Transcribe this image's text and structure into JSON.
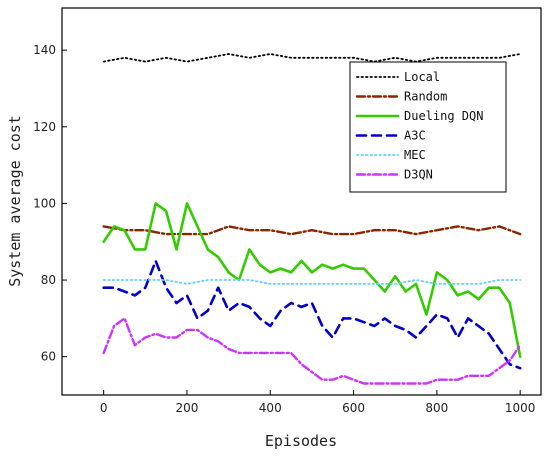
{
  "chart_data": {
    "type": "line",
    "xlabel": "Episodes",
    "ylabel": "System average cost",
    "xlim": [
      -100,
      1050
    ],
    "ylim": [
      50,
      151
    ],
    "xticks": [
      0,
      200,
      400,
      600,
      800,
      1000
    ],
    "yticks": [
      60,
      80,
      100,
      120,
      140
    ],
    "x_tick_labels": [
      "0",
      "200",
      "400",
      "600",
      "800",
      "1000"
    ],
    "y_tick_labels": [
      "60",
      "80",
      "100",
      "120",
      "140"
    ],
    "grid": false,
    "legend_position": "top-right",
    "series": [
      {
        "name": "Local",
        "color": "#000000",
        "style": "dotted",
        "x": [
          0,
          50,
          100,
          150,
          200,
          250,
          300,
          350,
          400,
          450,
          500,
          550,
          600,
          650,
          700,
          750,
          800,
          850,
          900,
          950,
          1000
        ],
        "y": [
          137,
          138,
          137,
          138,
          137,
          138,
          139,
          138,
          139,
          138,
          138,
          138,
          138,
          137,
          138,
          137,
          138,
          138,
          138,
          138,
          139
        ]
      },
      {
        "name": "Random",
        "color": "#8b2500",
        "style": "dashdot",
        "x": [
          0,
          50,
          100,
          150,
          200,
          250,
          300,
          350,
          400,
          450,
          500,
          550,
          600,
          650,
          700,
          750,
          800,
          850,
          900,
          950,
          1000
        ],
        "y": [
          94,
          93,
          93,
          92,
          92,
          92,
          94,
          93,
          93,
          92,
          93,
          92,
          92,
          93,
          93,
          92,
          93,
          94,
          93,
          94,
          92
        ]
      },
      {
        "name": "Dueling DQN",
        "color": "#33cc00",
        "style": "solid",
        "x": [
          0,
          25,
          50,
          75,
          100,
          125,
          150,
          175,
          200,
          225,
          250,
          275,
          300,
          325,
          350,
          375,
          400,
          425,
          450,
          475,
          500,
          525,
          550,
          575,
          600,
          625,
          650,
          675,
          700,
          725,
          750,
          775,
          800,
          825,
          850,
          875,
          900,
          925,
          950,
          975,
          1000
        ],
        "y": [
          90,
          94,
          93,
          88,
          88,
          100,
          98,
          88,
          100,
          94,
          88,
          86,
          82,
          80,
          88,
          84,
          82,
          83,
          82,
          85,
          82,
          84,
          83,
          84,
          83,
          83,
          80,
          77,
          81,
          77,
          79,
          71,
          82,
          80,
          76,
          77,
          75,
          78,
          78,
          74,
          60
        ]
      },
      {
        "name": "A3C",
        "color": "#0000cc",
        "style": "dashed",
        "x": [
          0,
          25,
          50,
          75,
          100,
          125,
          150,
          175,
          200,
          225,
          250,
          275,
          300,
          325,
          350,
          375,
          400,
          425,
          450,
          475,
          500,
          525,
          550,
          575,
          600,
          625,
          650,
          675,
          700,
          725,
          750,
          775,
          800,
          825,
          850,
          875,
          900,
          925,
          950,
          975,
          1000
        ],
        "y": [
          78,
          78,
          77,
          76,
          78,
          85,
          78,
          74,
          76,
          70,
          72,
          78,
          72,
          74,
          73,
          70,
          68,
          72,
          74,
          73,
          74,
          68,
          65,
          70,
          70,
          69,
          68,
          70,
          68,
          67,
          65,
          68,
          71,
          70,
          65,
          70,
          68,
          66,
          62,
          58,
          57
        ]
      },
      {
        "name": "MEC",
        "color": "#66ccff",
        "style": "dotted",
        "x": [
          0,
          50,
          100,
          150,
          200,
          250,
          300,
          350,
          400,
          450,
          500,
          550,
          600,
          650,
          700,
          750,
          800,
          850,
          900,
          950,
          1000
        ],
        "y": [
          80,
          80,
          80,
          80,
          79,
          80,
          80,
          80,
          79,
          79,
          79,
          79,
          79,
          79,
          79,
          80,
          79,
          79,
          79,
          80,
          80
        ]
      },
      {
        "name": "D3QN",
        "color": "#cc33ff",
        "style": "dashdot",
        "x": [
          0,
          25,
          50,
          75,
          100,
          125,
          150,
          175,
          200,
          225,
          250,
          275,
          300,
          325,
          350,
          375,
          400,
          425,
          450,
          475,
          500,
          525,
          550,
          575,
          600,
          625,
          650,
          675,
          700,
          725,
          750,
          775,
          800,
          825,
          850,
          875,
          900,
          925,
          950,
          975,
          1000
        ],
        "y": [
          61,
          68,
          70,
          63,
          65,
          66,
          65,
          65,
          67,
          67,
          65,
          64,
          62,
          61,
          61,
          61,
          61,
          61,
          61,
          58,
          56,
          54,
          54,
          55,
          54,
          53,
          53,
          53,
          53,
          53,
          53,
          53,
          54,
          54,
          54,
          55,
          55,
          55,
          57,
          59,
          63
        ]
      }
    ]
  }
}
